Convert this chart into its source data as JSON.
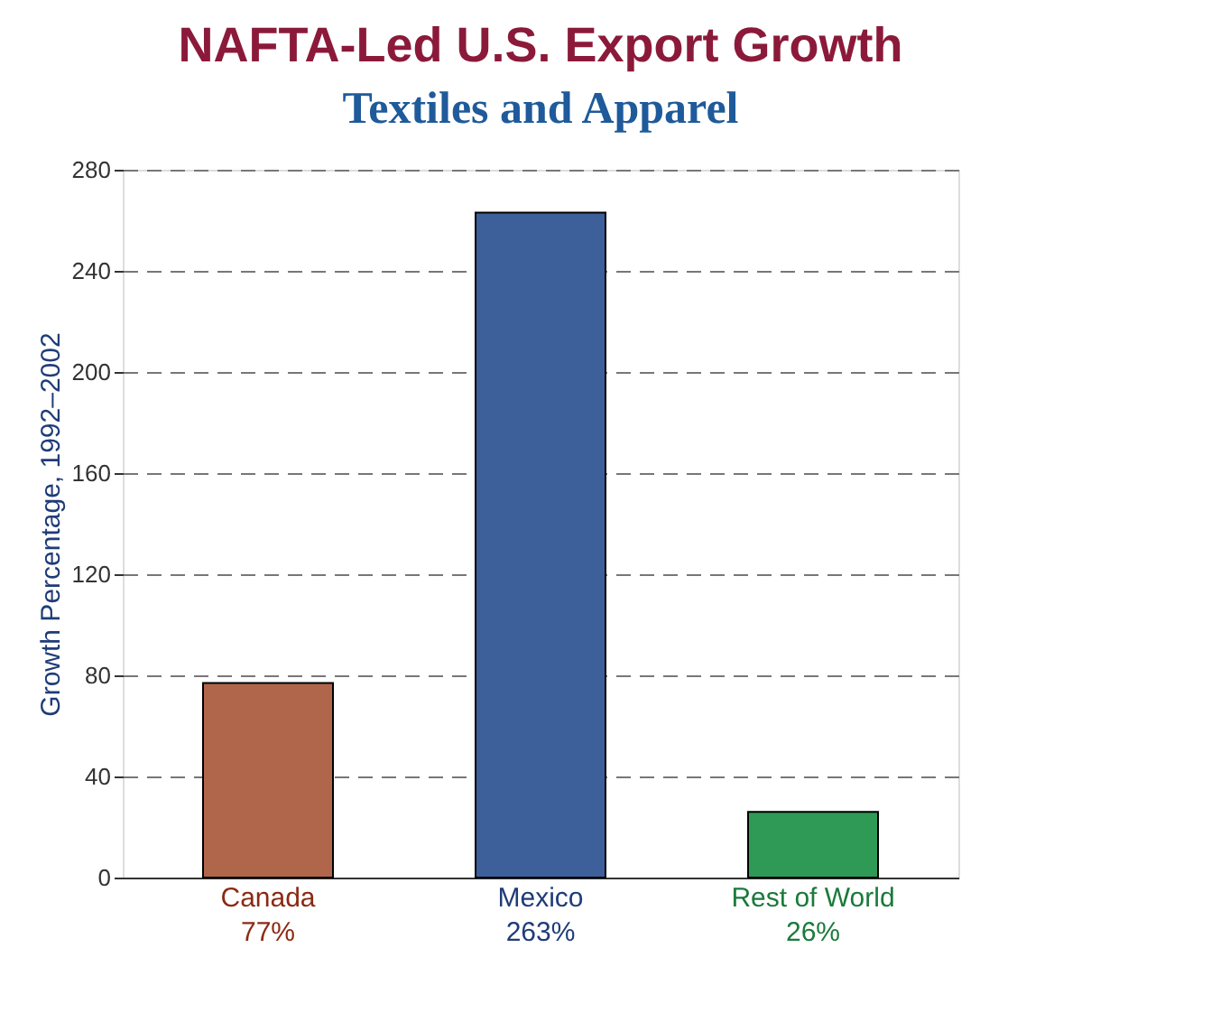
{
  "chart_data": {
    "type": "bar",
    "title": "NAFTA-Led U.S. Export Growth",
    "subtitle": "Textiles and Apparel",
    "ylabel": "Growth Percentage, 1992–2002",
    "categories": [
      "Canada",
      "Mexico",
      "Rest of World"
    ],
    "values": [
      77,
      263,
      26
    ],
    "colors": [
      "#b0664a",
      "#3d5f9a",
      "#2e9a55"
    ],
    "value_labels": [
      "77%",
      "263%",
      "26%"
    ],
    "ylim": [
      0,
      280
    ],
    "yticks": [
      0,
      40,
      80,
      120,
      160,
      200,
      240,
      280
    ],
    "grid": "y"
  }
}
